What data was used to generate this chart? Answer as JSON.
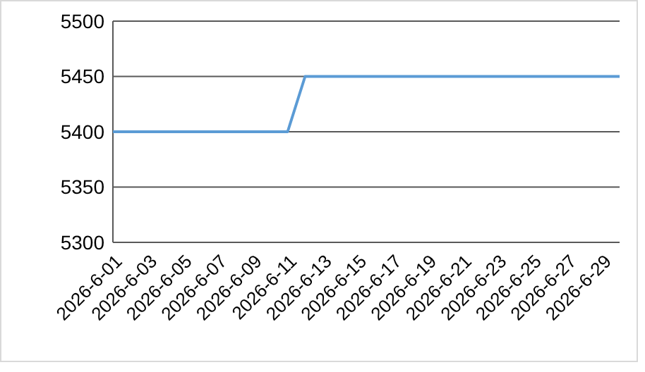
{
  "chart_data": {
    "type": "line",
    "categories": [
      "2026-6-01",
      null,
      "2026-6-03",
      null,
      "2026-6-05",
      null,
      "2026-6-07",
      null,
      "2026-6-09",
      null,
      "2026-6-11",
      null,
      "2026-6-13",
      null,
      "2026-6-15",
      null,
      "2026-6-17",
      null,
      "2026-6-19",
      null,
      "2026-6-21",
      null,
      "2026-6-23",
      null,
      "2026-6-25",
      null,
      "2026-6-27",
      null,
      "2026-6-29",
      null
    ],
    "series": [
      {
        "color": "#5b9bd5",
        "values": [
          5400,
          5400,
          5400,
          5400,
          5400,
          5400,
          5400,
          5400,
          5400,
          5400,
          5400,
          5450,
          5450,
          5450,
          5450,
          5450,
          5450,
          5450,
          5450,
          5450,
          5450,
          5450,
          5450,
          5450,
          5450,
          5450,
          5450,
          5450,
          5450,
          5450
        ]
      }
    ],
    "ylim": [
      5300,
      5500
    ],
    "yticks": [
      5300,
      5350,
      5400,
      5450,
      5500
    ],
    "grid": "y",
    "marker": "none",
    "line_style": "solid"
  }
}
